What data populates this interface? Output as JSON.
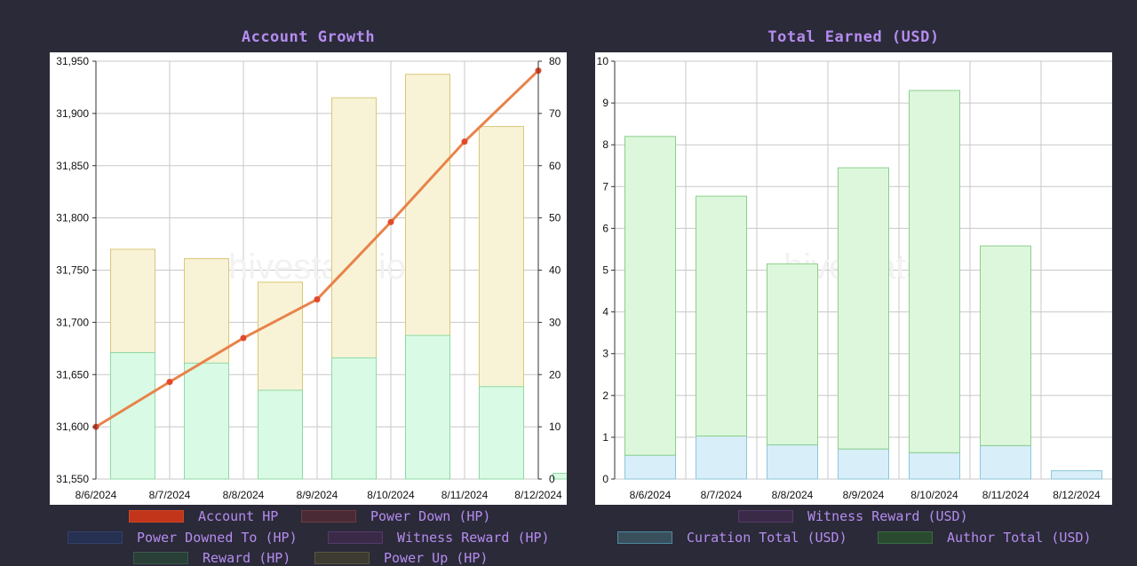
{
  "watermark": "hivestats.io",
  "chart_data": [
    {
      "type": "bar",
      "title": "Account Growth",
      "categories": [
        "8/6/2024",
        "8/7/2024",
        "8/8/2024",
        "8/9/2024",
        "8/10/2024",
        "8/11/2024",
        "8/12/2024"
      ],
      "left_axis": {
        "ticks": [
          "31,550",
          "31,600",
          "31,650",
          "31,700",
          "31,750",
          "31,800",
          "31,850",
          "31,900",
          "31,950"
        ],
        "ylim": [
          31550,
          31950
        ]
      },
      "right_axis": {
        "ticks": [
          "0",
          "10",
          "20",
          "30",
          "40",
          "50",
          "60",
          "70",
          "80"
        ],
        "ylim": [
          0,
          80
        ]
      },
      "grid": true,
      "series": [
        {
          "name": "Account HP",
          "kind": "line",
          "axis": "left",
          "color": "#e8834a",
          "point_color": "#e2482a",
          "values": [
            31600,
            31643,
            31685,
            31722,
            31796,
            31873,
            31941
          ]
        },
        {
          "name": "Reward (HP)",
          "kind": "bar",
          "axis": "right",
          "fill": "#d9fbe5",
          "stroke": "#8fd8a4",
          "values": [
            24.2,
            22.2,
            17,
            23.2,
            27.5,
            17.7,
            1.1
          ]
        },
        {
          "name": "Power Up (HP)",
          "kind": "bar",
          "axis": "right",
          "fill": "#f8f3d6",
          "stroke": "#d8c77a",
          "values": [
            44,
            42.2,
            37.7,
            73,
            77.5,
            67.5,
            0
          ]
        }
      ],
      "legend": [
        {
          "label": "Account HP",
          "fill": "#c2351a",
          "stroke": "#d0442a"
        },
        {
          "label": "Power Down (HP)",
          "fill": "#4a2b35",
          "stroke": "#6a3a45"
        },
        {
          "label": "Power Downed To (HP)",
          "fill": "#263050",
          "stroke": "#34406a"
        },
        {
          "label": "Witness Reward (HP)",
          "fill": "#3a2a48",
          "stroke": "#553a6a"
        },
        {
          "label": "Reward (HP)",
          "fill": "#2a3f38",
          "stroke": "#3a5a4a"
        },
        {
          "label": "Power Up (HP)",
          "fill": "#3d3a32",
          "stroke": "#5a5540"
        }
      ]
    },
    {
      "type": "bar",
      "title": "Total Earned (USD)",
      "categories": [
        "8/6/2024",
        "8/7/2024",
        "8/8/2024",
        "8/9/2024",
        "8/10/2024",
        "8/11/2024",
        "8/12/2024"
      ],
      "left_axis": {
        "ticks": [
          "0",
          "1",
          "2",
          "3",
          "4",
          "5",
          "6",
          "7",
          "8",
          "9",
          "10"
        ],
        "ylim": [
          0,
          10
        ]
      },
      "grid": true,
      "stacked": true,
      "series": [
        {
          "name": "Curation Total (USD)",
          "kind": "bar",
          "fill": "#d8eef8",
          "stroke": "#8cc7dc",
          "values": [
            0.57,
            1.03,
            0.82,
            0.72,
            0.63,
            0.8,
            0.2
          ]
        },
        {
          "name": "Author Total (USD)",
          "kind": "bar",
          "fill": "#dcf7dc",
          "stroke": "#8ccf8c",
          "values": [
            7.63,
            5.74,
            4.33,
            6.73,
            8.67,
            4.78,
            0
          ]
        }
      ],
      "legend": [
        {
          "label": "Witness Reward (USD)",
          "fill": "#3a2a48",
          "stroke": "#553a6a"
        },
        {
          "label": "Curation Total (USD)",
          "fill": "#3a4f5c",
          "stroke": "#4d8aa0"
        },
        {
          "label": "Author Total (USD)",
          "fill": "#2a4a30",
          "stroke": "#3a6a40"
        }
      ]
    }
  ]
}
